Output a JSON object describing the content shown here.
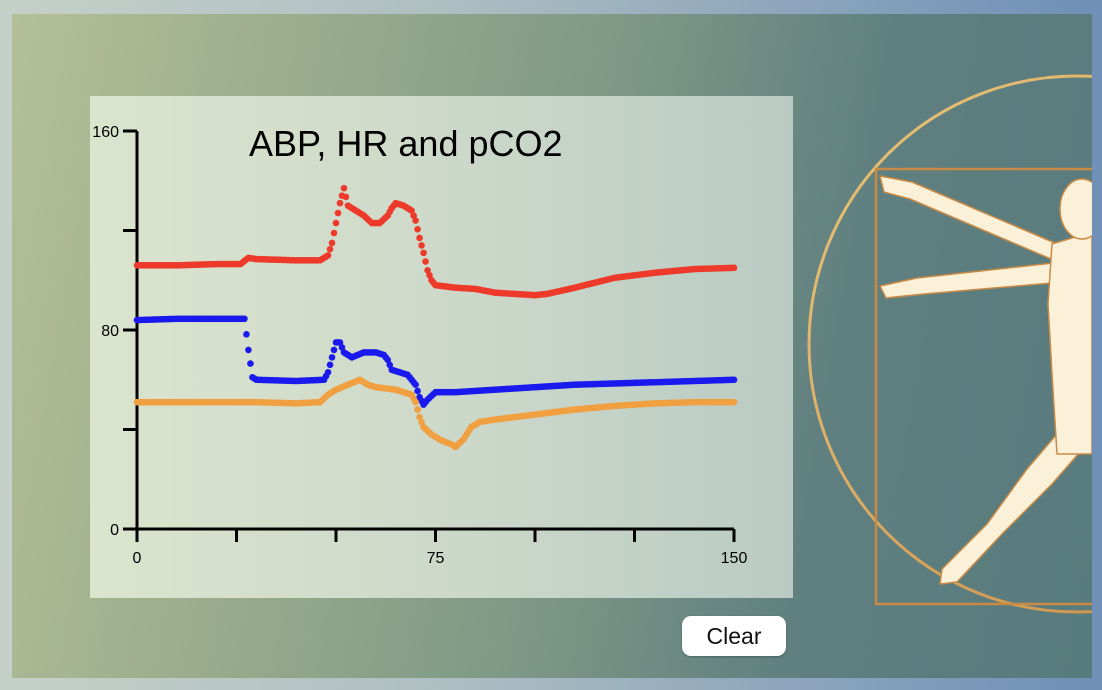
{
  "controls": {
    "clear_label": "Clear"
  },
  "figure_icon": "vitruvian-man",
  "chart_data": {
    "type": "scatter",
    "title": "ABP, HR and pCO2",
    "xlabel": "",
    "ylabel": "",
    "xlim": [
      0,
      150
    ],
    "ylim": [
      0,
      160
    ],
    "x_ticks": [
      0,
      25,
      50,
      75,
      100,
      125,
      150
    ],
    "x_tick_labels": [
      "0",
      "",
      "",
      "75",
      "",
      "",
      "150"
    ],
    "y_ticks": [
      0,
      40,
      80,
      120,
      160
    ],
    "y_tick_labels": [
      "0",
      "",
      "80",
      "",
      "160"
    ],
    "grid": false,
    "legend": "none",
    "series": [
      {
        "color": "#ee3a2a",
        "points": [
          [
            0,
            106
          ],
          [
            10,
            106
          ],
          [
            20,
            106.5
          ],
          [
            26,
            106.5
          ],
          [
            28,
            109
          ],
          [
            30,
            108.5
          ],
          [
            40,
            108
          ],
          [
            46,
            108
          ],
          [
            48,
            110
          ],
          [
            49,
            115
          ],
          [
            50,
            123
          ],
          [
            51,
            131
          ],
          [
            52,
            137
          ],
          [
            53,
            130
          ],
          [
            55,
            128
          ],
          [
            57,
            126
          ],
          [
            59,
            123
          ],
          [
            61,
            123
          ],
          [
            63,
            126
          ],
          [
            64,
            129
          ],
          [
            65,
            131
          ],
          [
            67,
            130
          ],
          [
            69,
            128
          ],
          [
            70,
            124
          ],
          [
            71,
            117
          ],
          [
            72,
            111
          ],
          [
            73,
            104
          ],
          [
            74,
            100
          ],
          [
            75,
            98
          ],
          [
            80,
            97
          ],
          [
            85,
            96.5
          ],
          [
            90,
            95
          ],
          [
            95,
            94.5
          ],
          [
            100,
            94
          ],
          [
            103,
            94.5
          ],
          [
            110,
            97
          ],
          [
            115,
            99
          ],
          [
            120,
            101
          ],
          [
            130,
            103
          ],
          [
            140,
            104.5
          ],
          [
            150,
            105
          ]
        ]
      },
      {
        "color": "#1a1aee",
        "points": [
          [
            0,
            84
          ],
          [
            10,
            84.5
          ],
          [
            20,
            84.5
          ],
          [
            27,
            84.5
          ],
          [
            28,
            72
          ],
          [
            29,
            61
          ],
          [
            30,
            60
          ],
          [
            40,
            59.5
          ],
          [
            47,
            60
          ],
          [
            48,
            63
          ],
          [
            49,
            69
          ],
          [
            50,
            75
          ],
          [
            51,
            75
          ],
          [
            52,
            71
          ],
          [
            54,
            69
          ],
          [
            57,
            71
          ],
          [
            60,
            71
          ],
          [
            62,
            70
          ],
          [
            63,
            68
          ],
          [
            64,
            64
          ],
          [
            66,
            63
          ],
          [
            68,
            62
          ],
          [
            70,
            58
          ],
          [
            71,
            53
          ],
          [
            72,
            50
          ],
          [
            73,
            52
          ],
          [
            75,
            55
          ],
          [
            80,
            55
          ],
          [
            90,
            56
          ],
          [
            100,
            57
          ],
          [
            110,
            58
          ],
          [
            120,
            58.5
          ],
          [
            130,
            59
          ],
          [
            140,
            59.5
          ],
          [
            150,
            60
          ]
        ]
      },
      {
        "color": "#f0a040",
        "points": [
          [
            0,
            51
          ],
          [
            10,
            51
          ],
          [
            20,
            51
          ],
          [
            30,
            51
          ],
          [
            40,
            50.5
          ],
          [
            46,
            51
          ],
          [
            48,
            54
          ],
          [
            50,
            56
          ],
          [
            53,
            58
          ],
          [
            56,
            60
          ],
          [
            58,
            58
          ],
          [
            60,
            57
          ],
          [
            65,
            56
          ],
          [
            69,
            54
          ],
          [
            70,
            51
          ],
          [
            71,
            45
          ],
          [
            72,
            41
          ],
          [
            74,
            38
          ],
          [
            76,
            36
          ],
          [
            79,
            34
          ],
          [
            80,
            33
          ],
          [
            82,
            36
          ],
          [
            84,
            41
          ],
          [
            86,
            43
          ],
          [
            90,
            44
          ],
          [
            95,
            45
          ],
          [
            100,
            46
          ],
          [
            110,
            48
          ],
          [
            120,
            49.5
          ],
          [
            130,
            50.5
          ],
          [
            140,
            51
          ],
          [
            150,
            51
          ]
        ]
      }
    ]
  }
}
